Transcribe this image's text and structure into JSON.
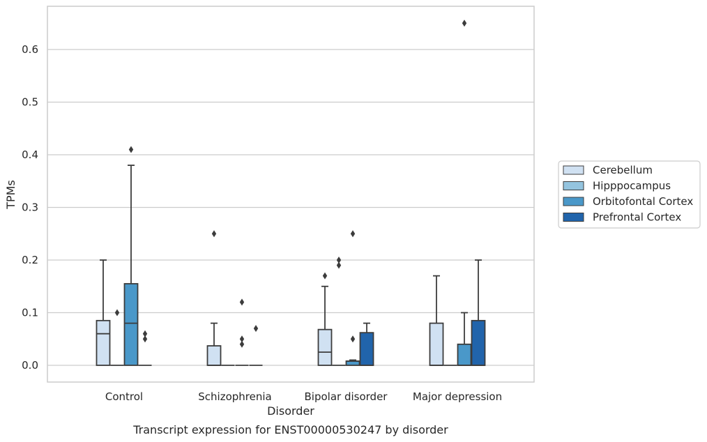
{
  "chart_data": {
    "type": "box",
    "caption": "Transcript expression for ENST00000530247 by disorder",
    "xlabel": "Disorder",
    "ylabel": "TPMs",
    "ylim": [
      -0.032,
      0.683
    ],
    "yticks": [
      0.0,
      0.1,
      0.2,
      0.3,
      0.4,
      0.5,
      0.6
    ],
    "ytick_labels": [
      "0.0",
      "0.1",
      "0.2",
      "0.3",
      "0.4",
      "0.5",
      "0.6"
    ],
    "grid": "horizontal",
    "legend_position": "right",
    "categories": [
      "Control",
      "Schizophrenia",
      "Bipolar disorder",
      "Major depression"
    ],
    "series": [
      {
        "name": "Cerebellum",
        "color": "#d0e1f2",
        "boxes": [
          {
            "whislo": 0.0,
            "q1": 0.0,
            "med": 0.06,
            "q3": 0.085,
            "whishi": 0.2,
            "fliers": []
          },
          {
            "whislo": 0.0,
            "q1": 0.0,
            "med": 0.0,
            "q3": 0.037,
            "whishi": 0.08,
            "fliers": [
              0.25
            ]
          },
          {
            "whislo": 0.0,
            "q1": 0.0,
            "med": 0.025,
            "q3": 0.068,
            "whishi": 0.15,
            "fliers": [
              0.17
            ]
          },
          {
            "whislo": 0.0,
            "q1": 0.0,
            "med": 0.0,
            "q3": 0.08,
            "whishi": 0.17,
            "fliers": []
          }
        ]
      },
      {
        "name": "Hipppocampus",
        "color": "#94c4df",
        "boxes": [
          {
            "whislo": 0.0,
            "q1": 0.0,
            "med": 0.0,
            "q3": 0.0,
            "whishi": 0.0,
            "fliers": [
              0.1
            ]
          },
          {
            "whislo": 0.0,
            "q1": 0.0,
            "med": 0.0,
            "q3": 0.0,
            "whishi": 0.0,
            "fliers": []
          },
          {
            "whislo": 0.0,
            "q1": 0.0,
            "med": 0.0,
            "q3": 0.0,
            "whishi": 0.0,
            "fliers": [
              0.19,
              0.2
            ]
          },
          {
            "whislo": 0.0,
            "q1": 0.0,
            "med": 0.0,
            "q3": 0.0,
            "whishi": 0.0,
            "fliers": []
          }
        ]
      },
      {
        "name": "Orbitofontal Cortex",
        "color": "#4a98c9",
        "boxes": [
          {
            "whislo": 0.0,
            "q1": 0.0,
            "med": 0.08,
            "q3": 0.155,
            "whishi": 0.38,
            "fliers": [
              0.41
            ]
          },
          {
            "whislo": 0.0,
            "q1": 0.0,
            "med": 0.0,
            "q3": 0.0,
            "whishi": 0.0,
            "fliers": [
              0.04,
              0.05,
              0.12
            ]
          },
          {
            "whislo": 0.0,
            "q1": 0.0,
            "med": 0.008,
            "q3": 0.008,
            "whishi": 0.01,
            "fliers": [
              0.05,
              0.25
            ]
          },
          {
            "whislo": 0.0,
            "q1": 0.0,
            "med": 0.0,
            "q3": 0.04,
            "whishi": 0.1,
            "fliers": [
              0.65
            ]
          }
        ]
      },
      {
        "name": "Prefrontal Cortex",
        "color": "#2164ab",
        "boxes": [
          {
            "whislo": 0.0,
            "q1": 0.0,
            "med": 0.0,
            "q3": 0.0,
            "whishi": 0.0,
            "fliers": [
              0.05,
              0.06
            ]
          },
          {
            "whislo": 0.0,
            "q1": 0.0,
            "med": 0.0,
            "q3": 0.0,
            "whishi": 0.0,
            "fliers": [
              0.07
            ]
          },
          {
            "whislo": 0.0,
            "q1": 0.0,
            "med": 0.0,
            "q3": 0.062,
            "whishi": 0.08,
            "fliers": []
          },
          {
            "whislo": 0.0,
            "q1": 0.0,
            "med": 0.0,
            "q3": 0.085,
            "whishi": 0.2,
            "fliers": []
          }
        ]
      }
    ]
  }
}
